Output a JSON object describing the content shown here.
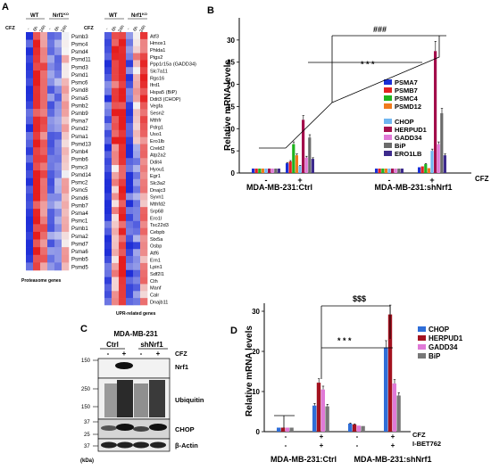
{
  "panels": {
    "A": {
      "letter": "A",
      "cfz_label": "CFZ",
      "group_wt": "WT",
      "group_ko": "Nrf1KO",
      "group_ko_base": "Nrf1",
      "group_ko_sup": "KO",
      "treat_labels": [
        "-",
        "6h",
        "24h",
        "-",
        "6h",
        "24h"
      ],
      "proteasome_genes": [
        "Psmb3",
        "Psmc4",
        "Psmd4",
        "Psmd11",
        "Psmd3",
        "Psmd1",
        "Psmc6",
        "Psmd8",
        "Psma5",
        "Psmb2",
        "Psmb9",
        "Psma7",
        "Psmd2",
        "Psma1",
        "Psmd13",
        "Psmb4",
        "Psmb6",
        "Psmc3",
        "Psmd14",
        "Psmc2",
        "Psmc5",
        "Psmd6",
        "Psmb7",
        "Psma4",
        "Psmc1",
        "Psmb1",
        "Psma2",
        "Psmd7",
        "Psma6",
        "Psmb5",
        "Psmd5"
      ],
      "proteasome_title": "Proteasome genes",
      "upr_genes": [
        "Atf3",
        "Hmox1",
        "Phlda1",
        "Ptgs2",
        "Ppp1r15a (GADD34)",
        "Slc7a11",
        "Rgs16",
        "Ifrd1",
        "Hspa5 (BiP)",
        "Ddit3 (CHOP)",
        "Vegfa",
        "Sesn2",
        "Mthfr",
        "Pdrg1",
        "Uso1",
        "Ero1lb",
        "Creld2",
        "Atp2a2",
        "Ddit4",
        "Hyou1",
        "Egr1",
        "Slc3a2",
        "Dnajc3",
        "Syvn1",
        "Mthfd2",
        "Srp68",
        "Ero1l",
        "Tsc22d3",
        "Cebpb",
        "Stx5a",
        "Osbp",
        "Atf6",
        "Ern1",
        "Lpin1",
        "Sdf2l1",
        "Cth",
        "Manf",
        "Calr",
        "Dnajb11"
      ],
      "upr_title": "UPR-related genes"
    },
    "B": {
      "letter": "B",
      "cfz_axis_label": "CFZ",
      "sig1": "###",
      "sig2": "* * *"
    },
    "C": {
      "letter": "C",
      "cell_line": "MDA-MB-231",
      "col_ctrl": "Ctrl",
      "col_sh": "shNrf1",
      "cfz_label": "CFZ",
      "cfz_marks": [
        "-",
        "+",
        "-",
        "+"
      ],
      "mw": [
        "150",
        "250",
        "150",
        "37",
        "25",
        "37"
      ],
      "kda": "(kDa)",
      "blots": [
        "Nrf1",
        "Ubiquitin",
        "CHOP",
        "β-Actin"
      ]
    },
    "D": {
      "letter": "D",
      "sig1": "$$$",
      "sig2": "* * *",
      "cfz_label": "CFZ",
      "ibet_label": "I-BET762",
      "cfz_marks": [
        "-",
        "+",
        "-",
        "+"
      ],
      "ibet_marks": [
        "-",
        "+",
        "-",
        "+"
      ]
    }
  },
  "chart_data": [
    {
      "type": "bar",
      "panel": "B",
      "ylabel": "Relative mRNA levels",
      "ylim": [
        0,
        35
      ],
      "yticks": [
        0,
        5,
        10,
        15,
        20,
        25,
        30
      ],
      "categories": [
        "MDA-MB-231:Ctrl -",
        "MDA-MB-231:Ctrl +",
        "MDA-MB-231:shNrf1 -",
        "MDA-MB-231:shNrf1 +"
      ],
      "group_labels": [
        "MDA-MB-231:Ctrl",
        "MDA-MB-231:shNrf1"
      ],
      "tick_marks": [
        "-",
        "+",
        "-",
        "+"
      ],
      "legend_position": "upper-right",
      "series": [
        {
          "name": "PSMA7",
          "color": "#1a2fd6",
          "values": [
            1.0,
            2.2,
            1.0,
            1.3
          ]
        },
        {
          "name": "PSMB7",
          "color": "#e32222",
          "values": [
            1.0,
            2.6,
            1.0,
            1.5
          ]
        },
        {
          "name": "PSMC4",
          "color": "#1fb31f",
          "values": [
            1.0,
            6.5,
            1.0,
            2.0
          ]
        },
        {
          "name": "PSMD12",
          "color": "#f07a1c",
          "values": [
            1.0,
            4.0,
            1.0,
            1.1
          ]
        },
        {
          "name": "CHOP",
          "color": "#6fb6f0",
          "values": [
            1.0,
            1.6,
            1.0,
            5.0
          ]
        },
        {
          "name": "HERPUD1",
          "color": "#a30e4b",
          "values": [
            1.0,
            12.0,
            1.0,
            27.5
          ]
        },
        {
          "name": "GADD34",
          "color": "#e07ad7",
          "values": [
            1.0,
            3.5,
            1.0,
            6.5
          ]
        },
        {
          "name": "BiP",
          "color": "#6b6b6b",
          "values": [
            1.0,
            8.0,
            1.0,
            13.5
          ]
        },
        {
          "name": "ERO1LB",
          "color": "#3d2a8c",
          "values": [
            1.0,
            3.2,
            1.0,
            4.0
          ]
        }
      ]
    },
    {
      "type": "bar",
      "panel": "D",
      "ylabel": "Relative mRNA levels",
      "ylim": [
        0,
        32
      ],
      "yticks": [
        0,
        10,
        20,
        30
      ],
      "group_labels": [
        "MDA-MB-231:Ctrl",
        "MDA-MB-231:shNrf1"
      ],
      "legend_position": "upper-right",
      "series": [
        {
          "name": "CHOP",
          "color": "#2f6ed8",
          "values": [
            1.0,
            6.5,
            2.0,
            21.0
          ]
        },
        {
          "name": "HERPUD1",
          "color": "#a3121f",
          "values": [
            1.0,
            12.2,
            1.8,
            29.2
          ]
        },
        {
          "name": "GADD34",
          "color": "#e07ad7",
          "values": [
            1.0,
            10.5,
            1.5,
            12.0
          ]
        },
        {
          "name": "BiP",
          "color": "#777777",
          "values": [
            1.0,
            6.3,
            1.4,
            9.0
          ]
        }
      ]
    }
  ],
  "colors": {
    "heat_high": "#e51d1d",
    "heat_low": "#1f2fd8",
    "heat_mid": "#f4f4f4"
  }
}
